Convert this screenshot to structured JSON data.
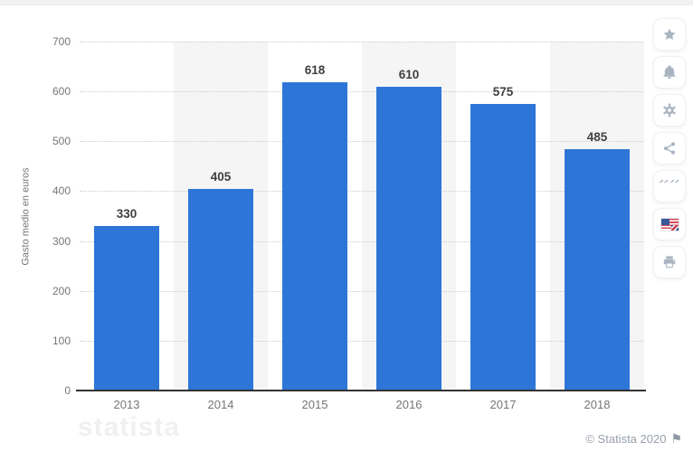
{
  "chart_data": {
    "type": "bar",
    "categories": [
      "2013",
      "2014",
      "2015",
      "2016",
      "2017",
      "2018"
    ],
    "values": [
      330,
      405,
      618,
      610,
      575,
      485
    ],
    "title": "",
    "xlabel": "",
    "ylabel": "Gasto medio en euros",
    "ylim": [
      0,
      700
    ],
    "yticks": [
      0,
      100,
      200,
      300,
      400,
      500,
      600,
      700
    ],
    "grid": "horizontal-dotted",
    "legend": "none",
    "bar_color": "#2d76d8",
    "plot_band_color": "#f5f5f5"
  },
  "sidebar": {
    "buttons": [
      {
        "name": "favorite",
        "icon": "star-icon"
      },
      {
        "name": "alerts",
        "icon": "bell-icon"
      },
      {
        "name": "settings",
        "icon": "gear-icon"
      },
      {
        "name": "share",
        "icon": "share-icon"
      },
      {
        "name": "cite",
        "icon": "quote-icon"
      },
      {
        "name": "language-english",
        "icon": "us-flag-icon"
      },
      {
        "name": "print",
        "icon": "printer-icon"
      }
    ]
  },
  "footer": {
    "copyright": "© Statista 2020",
    "report_flag": "⚑",
    "watermark": "statista"
  },
  "colors": {
    "bar": "#2d76d8",
    "axis_line": "#333333",
    "gridline": "#cccccc",
    "tick_text": "#767676",
    "value_text": "#3f3f3f",
    "icon": "#a9b5c1",
    "copyright_text": "#98a0ab"
  }
}
